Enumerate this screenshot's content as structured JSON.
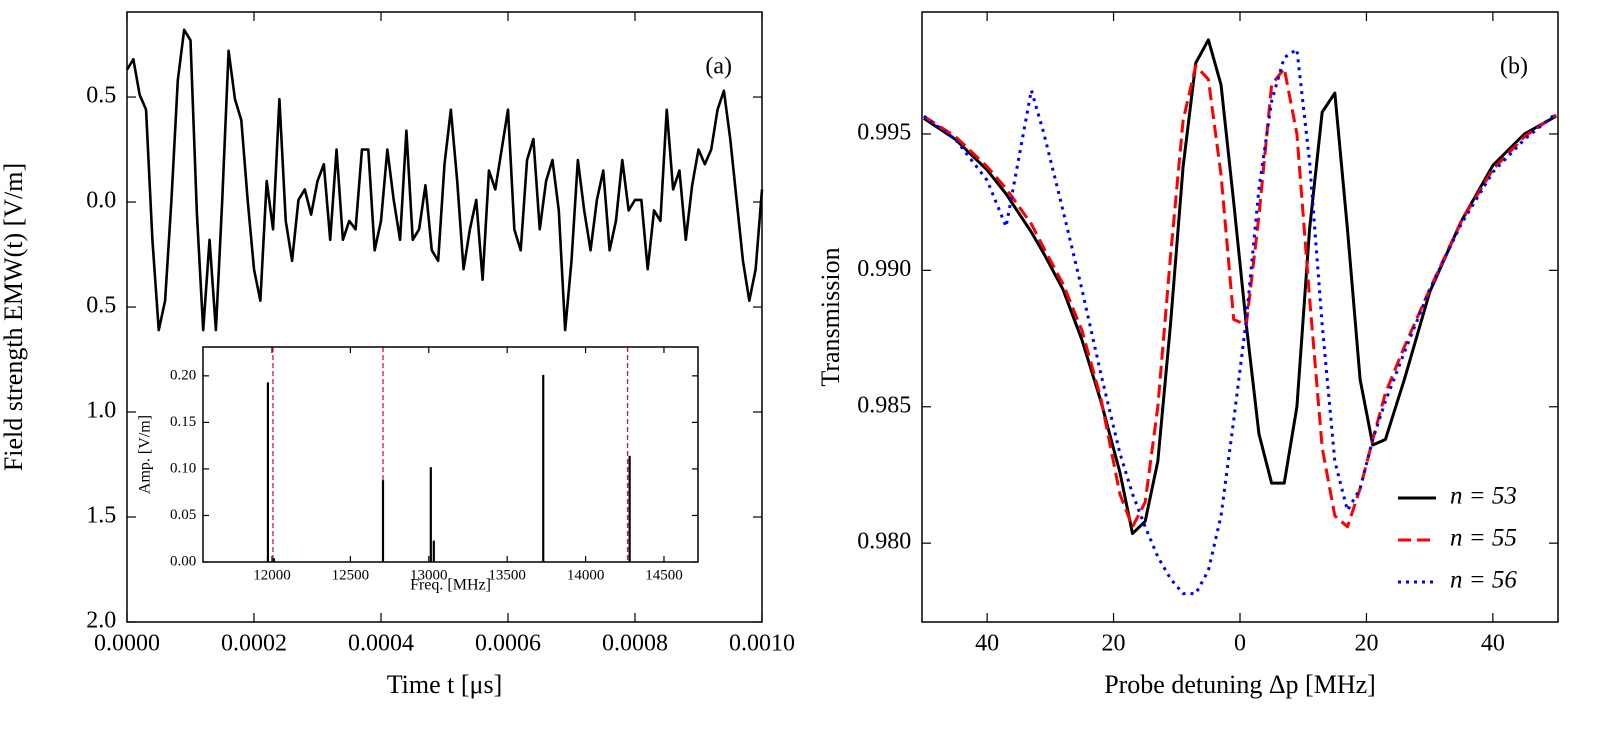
{
  "chart_data": [
    {
      "type": "line",
      "panel_label": "(a)",
      "x_label": "Time t [μs]",
      "y_label": "Field strength EMW(t) [V/m]",
      "xlim": [
        0,
        0.001
      ],
      "ylim": [
        -2.0,
        0.905
      ],
      "xticks": [
        {
          "value": 0,
          "label": "0.0000"
        },
        {
          "value": 0.0002,
          "label": "0.0002"
        },
        {
          "value": 0.0004,
          "label": "0.0004"
        },
        {
          "value": 0.0006,
          "label": "0.0006"
        },
        {
          "value": 0.0008,
          "label": "0.0008"
        },
        {
          "value": 0.001,
          "label": "0.0010"
        }
      ],
      "yticks": [
        0.5,
        {
          "value": 0,
          "label": "0.0"
        },
        {
          "value": -0.5,
          "label": "0.5"
        },
        {
          "value": -1,
          "label": "1.0"
        },
        {
          "value": -1.5,
          "label": "1.5"
        },
        {
          "value": -2,
          "label": "2.0"
        }
      ],
      "x": [
        0,
        1e-05,
        2e-05,
        3e-05,
        4e-05,
        5e-05,
        6e-05,
        7e-05,
        8e-05,
        9e-05,
        0.0001,
        0.00011,
        0.00012,
        0.00013,
        0.00014,
        0.00015,
        0.00016,
        0.00017,
        0.00018,
        0.00019,
        0.0002,
        0.00021,
        0.00022,
        0.00023,
        0.00024,
        0.00025,
        0.00026,
        0.00027,
        0.00028,
        0.00029,
        0.0003,
        0.00031,
        0.00032,
        0.00033,
        0.00034,
        0.00035,
        0.00036,
        0.00037,
        0.00038,
        0.00039,
        0.0004,
        0.00041,
        0.00042,
        0.00043,
        0.00044,
        0.00045,
        0.00046,
        0.00047,
        0.00048,
        0.00049,
        0.0005,
        0.00051,
        0.00052,
        0.00053,
        0.00054,
        0.00055,
        0.00056,
        0.00057,
        0.00058,
        0.00059,
        0.0006,
        0.00061,
        0.00062,
        0.00063,
        0.00064,
        0.00065,
        0.00066,
        0.00067,
        0.00068,
        0.00069,
        0.0007,
        0.00071,
        0.00072,
        0.00073,
        0.00074,
        0.00075,
        0.00076,
        0.00077,
        0.00078,
        0.00079,
        0.0008,
        0.00081,
        0.00082,
        0.00083,
        0.00084,
        0.00085,
        0.00086,
        0.00087,
        0.00088,
        0.00089,
        0.0009,
        0.00091,
        0.00092,
        0.00093,
        0.00094,
        0.00095,
        0.00096,
        0.00097,
        0.00098,
        0.00099,
        0.001
      ],
      "series": [
        {
          "color": "#000000",
          "values": [
            0.63,
            0.68,
            0.51,
            0.44,
            -0.18,
            -0.61,
            -0.47,
            0.01,
            0.58,
            0.82,
            0.77,
            -0.05,
            -0.61,
            -0.18,
            -0.61,
            0.01,
            0.72,
            0.49,
            0.39,
            0.01,
            -0.32,
            -0.47,
            0.1,
            -0.13,
            0.49,
            -0.09,
            -0.28,
            0.01,
            0.06,
            -0.06,
            0.1,
            0.18,
            -0.18,
            0.25,
            -0.18,
            -0.09,
            -0.13,
            0.25,
            0.25,
            -0.23,
            -0.09,
            0.25,
            0.01,
            -0.18,
            0.34,
            -0.18,
            -0.13,
            0.08,
            -0.23,
            -0.28,
            0.18,
            0.44,
            0.1,
            -0.32,
            -0.13,
            0.01,
            -0.37,
            0.15,
            0.06,
            0.25,
            0.44,
            -0.13,
            -0.23,
            0.2,
            0.3,
            -0.13,
            0.1,
            0.2,
            -0.04,
            -0.61,
            -0.28,
            0.2,
            -0.04,
            -0.23,
            0.01,
            0.15,
            -0.23,
            -0.09,
            0.2,
            -0.04,
            0.01,
            0.01,
            -0.32,
            -0.04,
            -0.09,
            0.44,
            0.06,
            0.15,
            -0.18,
            0.08,
            0.25,
            0.18,
            0.25,
            0.44,
            0.53,
            0.3,
            0.01,
            -0.28,
            -0.47,
            -0.32,
            0.06
          ]
        }
      ]
    },
    {
      "type": "stem",
      "x_label": "Freq. [MHz]",
      "y_label": "Amp. [V/m]",
      "xlim": [
        11560,
        14717
      ],
      "ylim": [
        0,
        0.231
      ],
      "xticks": [
        12000,
        12500,
        13000,
        13500,
        14000,
        14500
      ],
      "yticks": [
        {
          "value": 0,
          "label": "0.00"
        },
        0.05,
        {
          "value": 0.1,
          "label": "0.10"
        },
        0.15,
        {
          "value": 0.2,
          "label": "0.20"
        }
      ],
      "x": [
        11974,
        12012,
        12708,
        13013,
        13032,
        13730,
        14281
      ],
      "values": [
        0.193,
        0.004,
        0.088,
        0.102,
        0.023,
        0.201,
        0.114
      ],
      "color": "#000000",
      "vlines": [
        12006,
        12708,
        14268
      ],
      "vline_color": "#dc143c"
    },
    {
      "type": "line",
      "panel_label": "(b)",
      "x_label": "Probe detuning Δp [MHz]",
      "y_label": "Transmission",
      "xlim": [
        -50.3,
        50.3
      ],
      "ylim": [
        0.97711,
        0.99947
      ],
      "xticks": [
        {
          "value": -40,
          "label": "40"
        },
        {
          "value": -20,
          "label": "20"
        },
        0,
        20,
        40
      ],
      "yticks": [
        {
          "value": 0.98,
          "label": "0.980"
        },
        0.985,
        {
          "value": 0.99,
          "label": "0.990"
        },
        0.995
      ],
      "legend": "lower right",
      "x": [
        -50,
        -45,
        -40,
        -37,
        -33,
        -31,
        -28,
        -25,
        -22,
        -19,
        -17,
        -15,
        -13,
        -11,
        -9,
        -7,
        -5,
        -3,
        -1,
        1,
        3,
        5,
        7,
        9,
        11,
        13,
        15,
        17,
        19,
        21,
        23,
        26,
        30,
        35,
        40,
        45,
        50
      ],
      "series": [
        {
          "name": "n = 53",
          "color": "#000000",
          "dash": "solid",
          "values": [
            0.99557,
            0.9948,
            0.99368,
            0.9928,
            0.9914,
            0.9906,
            0.9893,
            0.98745,
            0.9852,
            0.9826,
            0.98035,
            0.9808,
            0.983,
            0.988,
            0.9938,
            0.9976,
            0.99845,
            0.9968,
            0.9925,
            0.988,
            0.984,
            0.9822,
            0.9822,
            0.985,
            0.9915,
            0.9958,
            0.9965,
            0.9915,
            0.986,
            0.9836,
            0.9838,
            0.986,
            0.9892,
            0.9918,
            0.99385,
            0.995,
            0.99565
          ]
        },
        {
          "name": "n = 55",
          "color": "#ff0000",
          "dash": "dashed",
          "values": [
            0.99565,
            0.9949,
            0.9938,
            0.993,
            0.9917,
            0.9908,
            0.9895,
            0.9878,
            0.9853,
            0.9818,
            0.9806,
            0.9815,
            0.985,
            0.9905,
            0.9955,
            0.9975,
            0.997,
            0.9935,
            0.9882,
            0.988,
            0.992,
            0.9968,
            0.9974,
            0.995,
            0.989,
            0.9835,
            0.981,
            0.9806,
            0.982,
            0.9838,
            0.9855,
            0.9872,
            0.9893,
            0.9918,
            0.9937,
            0.9949,
            0.9957
          ]
        },
        {
          "name": "n = 56",
          "color": "#0000ff",
          "dash": "dotted",
          "values": [
            0.99565,
            0.9948,
            0.9933,
            0.9916,
            0.9966,
            0.995,
            0.9922,
            0.9893,
            0.9862,
            0.9833,
            0.9818,
            0.9806,
            0.9795,
            0.9787,
            0.97815,
            0.97815,
            0.979,
            0.981,
            0.9845,
            0.9882,
            0.993,
            0.9962,
            0.9978,
            0.9981,
            0.994,
            0.988,
            0.983,
            0.9812,
            0.982,
            0.9838,
            0.9852,
            0.987,
            0.9893,
            0.9917,
            0.9936,
            0.9948,
            0.99575
          ]
        }
      ]
    }
  ]
}
